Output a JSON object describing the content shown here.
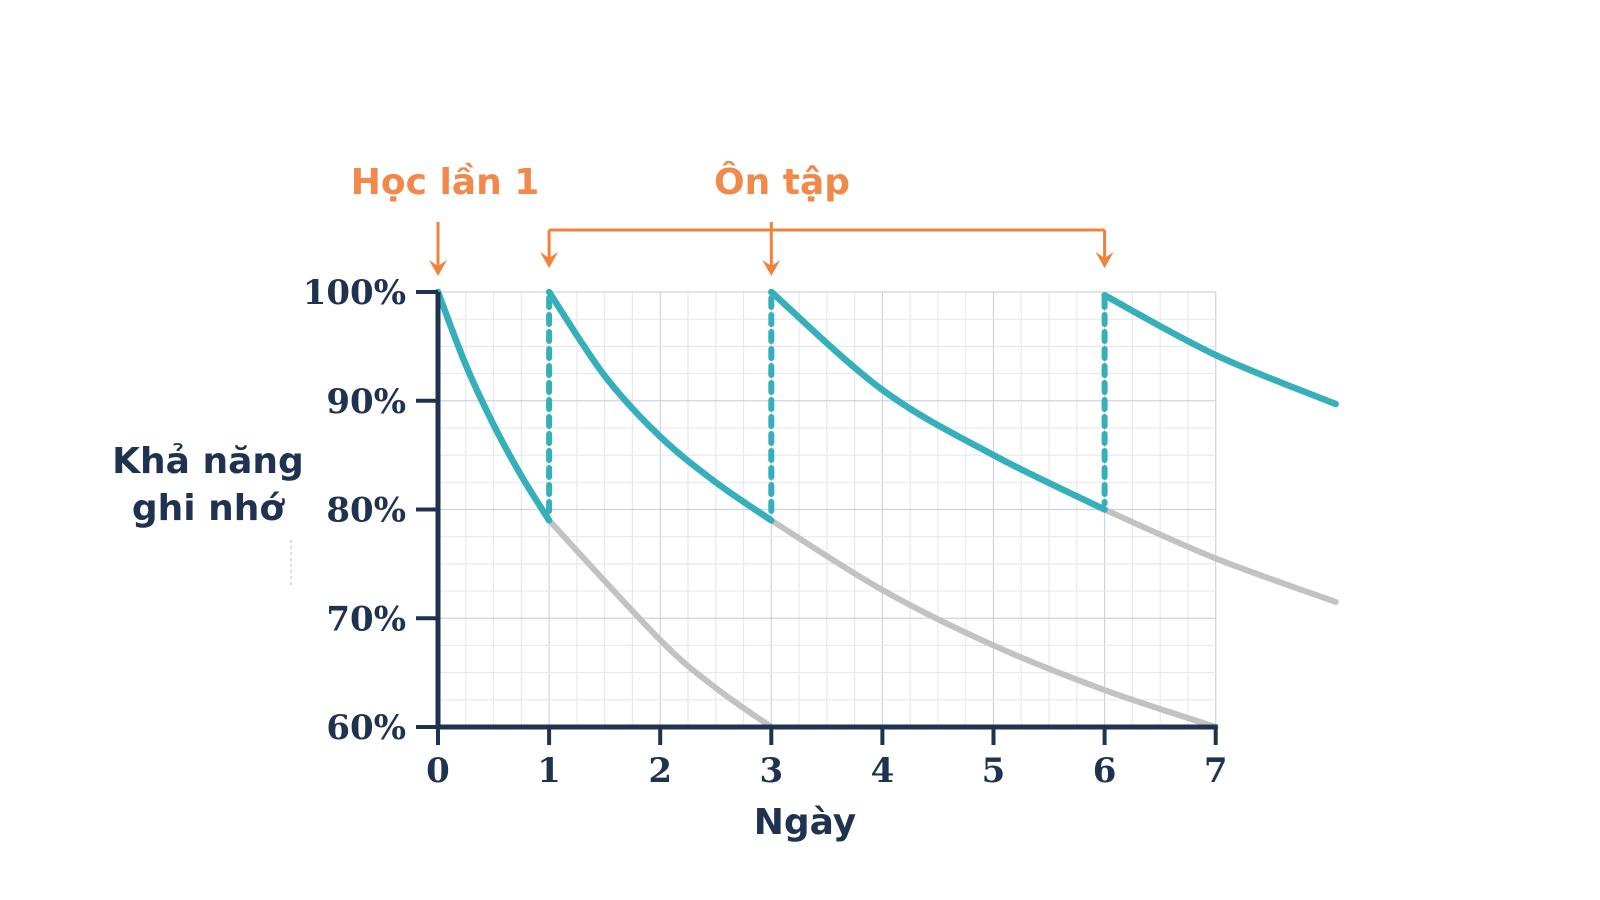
{
  "colors": {
    "axis": "#1f3350",
    "teal": "#35b0bb",
    "gray": "#c2c2c2",
    "annotation": "#f0823a",
    "grid": "#dde1e8"
  },
  "chart_data": {
    "type": "line",
    "title": "",
    "xlabel": "Ngày",
    "ylabel": [
      "Khả năng",
      "ghi nhớ"
    ],
    "xlim": [
      0,
      7
    ],
    "ylim": [
      60,
      100
    ],
    "x_ticks": [
      "0",
      "1",
      "2",
      "3",
      "4",
      "5",
      "6",
      "7"
    ],
    "x_tick_values": [
      0,
      1,
      2,
      3,
      4,
      5,
      6,
      7
    ],
    "y_ticks": [
      "60%",
      "70%",
      "80%",
      "90%",
      "100%"
    ],
    "y_tick_values": [
      60,
      70,
      80,
      90,
      100
    ],
    "grid": true,
    "annotations": {
      "first_study": "Học lần 1",
      "review": "Ôn tập",
      "first_study_day": 0,
      "review_days": [
        1,
        3,
        6
      ]
    },
    "series": [
      {
        "name": "retention-with-review-1",
        "style": "teal",
        "points": [
          [
            0,
            100
          ],
          [
            0.25,
            93.3
          ],
          [
            0.5,
            87.8
          ],
          [
            0.75,
            83.1
          ],
          [
            1,
            79
          ]
        ]
      },
      {
        "name": "retention-with-review-2",
        "style": "teal",
        "points": [
          [
            1,
            100
          ],
          [
            1.5,
            92.3
          ],
          [
            2,
            86.7
          ],
          [
            2.5,
            82.5
          ],
          [
            3,
            79
          ]
        ]
      },
      {
        "name": "retention-with-review-3",
        "style": "teal",
        "points": [
          [
            3,
            100
          ],
          [
            4,
            91
          ],
          [
            5,
            85
          ],
          [
            6,
            80
          ]
        ]
      },
      {
        "name": "retention-with-review-4",
        "style": "teal",
        "points": [
          [
            6,
            99.7
          ],
          [
            7,
            94.2
          ],
          [
            8.08,
            89.7
          ]
        ]
      },
      {
        "name": "forgetting-without-review-1",
        "style": "gray",
        "points": [
          [
            1,
            79
          ],
          [
            2,
            68
          ],
          [
            2.5,
            63.6
          ],
          [
            3,
            60
          ]
        ]
      },
      {
        "name": "forgetting-without-review-2",
        "style": "gray",
        "points": [
          [
            3,
            79
          ],
          [
            4,
            72.6
          ],
          [
            5,
            67.5
          ],
          [
            6,
            63.4
          ],
          [
            7,
            60
          ]
        ]
      },
      {
        "name": "forgetting-without-review-3",
        "style": "gray",
        "points": [
          [
            6,
            80
          ],
          [
            7,
            75.5
          ],
          [
            8.08,
            71.5
          ]
        ]
      }
    ],
    "review_jumps": [
      [
        1,
        79,
        100
      ],
      [
        3,
        79,
        100
      ],
      [
        6,
        80,
        100
      ]
    ]
  }
}
